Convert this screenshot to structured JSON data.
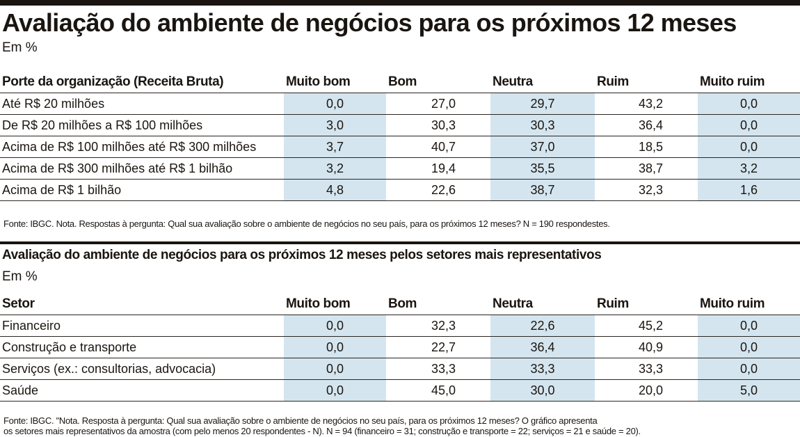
{
  "header": {
    "title": "Avaliação do ambiente de negócios para os próximos 12 meses",
    "unit": "Em %"
  },
  "table1": {
    "columns": [
      "Porte da organização (Receita Bruta)",
      "Muito bom",
      "Bom",
      "Neutra",
      "Ruim",
      "Muito ruim"
    ],
    "rows": [
      [
        "Até R$ 20 milhões",
        "0,0",
        "27,0",
        "29,7",
        "43,2",
        "0,0"
      ],
      [
        "De R$ 20 milhões a R$ 100 milhões",
        "3,0",
        "30,3",
        "30,3",
        "36,4",
        "0,0"
      ],
      [
        "Acima de R$ 100 milhões até R$ 300 milhões",
        "3,7",
        "40,7",
        "37,0",
        "18,5",
        "0,0"
      ],
      [
        "Acima de R$ 300 milhões até R$ 1 bilhão",
        "3,2",
        "19,4",
        "35,5",
        "38,7",
        "3,2"
      ],
      [
        "Acima de R$ 1 bilhão",
        "4,8",
        "22,6",
        "38,7",
        "32,3",
        "1,6"
      ]
    ],
    "note": "Fonte: IBGC. Nota. Respostas à pergunta: Qual sua avaliação sobre o ambiente de negócios no seu país, para os próximos 12 meses? N = 190 respondestes."
  },
  "section2": {
    "title": "Avaliação do ambiente de negócios para os próximos 12 meses pelos setores mais representativos",
    "unit": "Em %"
  },
  "table2": {
    "columns": [
      "Setor",
      "Muito bom",
      "Bom",
      "Neutra",
      "Ruim",
      "Muito ruim"
    ],
    "rows": [
      [
        "Financeiro",
        "0,0",
        "32,3",
        "22,6",
        "45,2",
        "0,0"
      ],
      [
        "Construção e transporte",
        "0,0",
        "22,7",
        "36,4",
        "40,9",
        "0,0"
      ],
      [
        "Serviços (ex.: consultorias, advocacia)",
        "0,0",
        "33,3",
        "33,3",
        "33,3",
        "0,0"
      ],
      [
        "Saúde",
        "0,0",
        "45,0",
        "30,0",
        "20,0",
        "5,0"
      ]
    ],
    "note_line1": "Fonte: IBGC. \"Nota. Resposta à pergunta: Qual sua avaliação sobre o ambiente de negócios no seu país, para os próximos 12 meses? O gráfico apresenta",
    "note_line2": "os setores mais representativos da amostra (com pelo menos 20 respondentes - N). N = 94 (financeiro = 31; construção e transporte = 22; serviços = 21 e saúde = 20)."
  },
  "colors": {
    "shade": "#d4e5ef",
    "ink": "#1a1510"
  }
}
